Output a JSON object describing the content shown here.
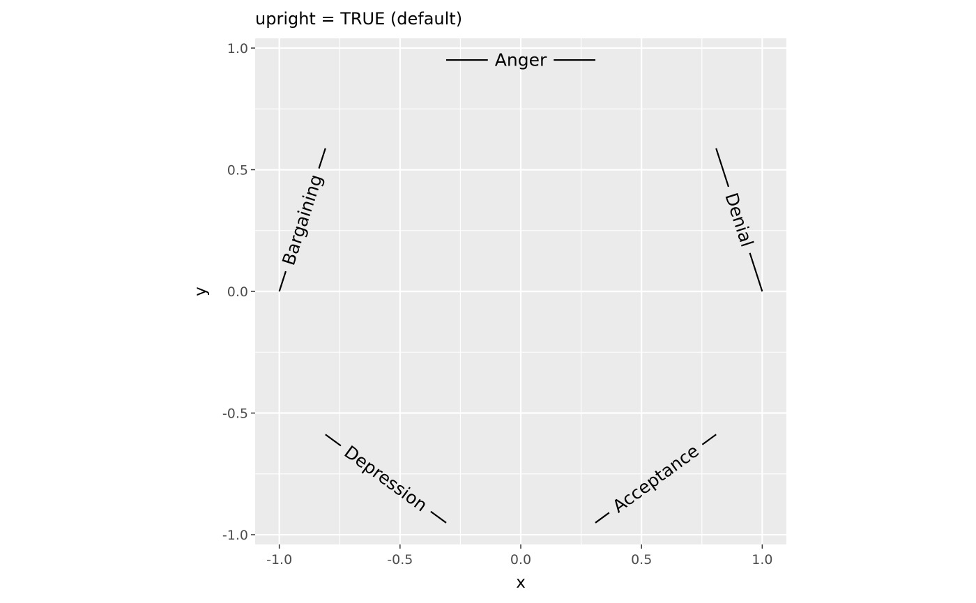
{
  "chart_data": {
    "type": "line",
    "title": "upright = TRUE (default)",
    "xlabel": "x",
    "ylabel": "y",
    "xlim": [
      -1.1,
      1.1
    ],
    "ylim": [
      -1.04,
      1.04
    ],
    "x_ticks": [
      -1.0,
      -0.5,
      0.0,
      0.5,
      1.0
    ],
    "x_tick_labels": [
      "-1.0",
      "-0.5",
      "0.0",
      "0.5",
      "1.0"
    ],
    "y_ticks": [
      -1.0,
      -0.5,
      0.0,
      0.5,
      1.0
    ],
    "y_tick_labels": [
      "-1.0",
      "-0.5",
      "0.0",
      "0.5",
      "1.0"
    ],
    "grid": true,
    "legend": "none",
    "colors": {
      "panel": "#ebebeb",
      "grid": "#ffffff",
      "line": "#000000",
      "tick_text": "#4d4d4d"
    },
    "series": [
      {
        "label": "Denial",
        "x": [
          1.0,
          0.809
        ],
        "y": [
          0.0,
          0.588
        ]
      },
      {
        "label": "Anger",
        "x": [
          0.309,
          -0.309
        ],
        "y": [
          0.951,
          0.951
        ]
      },
      {
        "label": "Bargaining",
        "x": [
          -0.809,
          -1.0
        ],
        "y": [
          0.588,
          0.0
        ]
      },
      {
        "label": "Depression",
        "x": [
          -0.809,
          -0.309
        ],
        "y": [
          -0.588,
          -0.951
        ]
      },
      {
        "label": "Acceptance",
        "x": [
          0.309,
          0.809
        ],
        "y": [
          -0.951,
          -0.588
        ]
      }
    ]
  }
}
